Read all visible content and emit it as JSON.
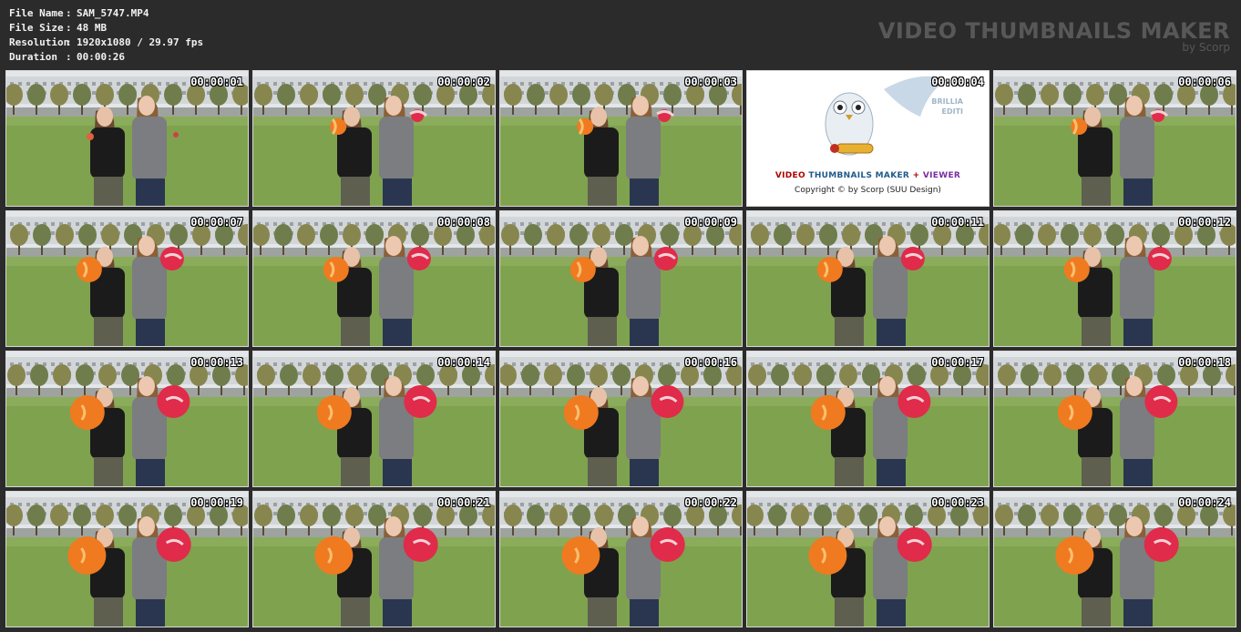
{
  "info": {
    "rows": [
      {
        "label": "File Name",
        "sep": ":",
        "value": "SAM_5747.MP4"
      },
      {
        "label": "File Size",
        "sep": ":",
        "value": "48 MB"
      },
      {
        "label": "Resolution",
        "sep": ":",
        "value": "1920x1080 / 29.97 fps"
      },
      {
        "label": "Duration",
        "sep": ":",
        "value": "00:00:26"
      }
    ]
  },
  "brand": {
    "title": "VIDEO THUMBNAILS MAKER",
    "subtitle": "by Scorp"
  },
  "logo": {
    "title_part1": "VIDEO",
    "title_part2": "THUMBNAILS MAKER",
    "title_part3": "+",
    "title_part4": "VIEWER",
    "copyright": "Copyright © by Scorp (SUU Design)",
    "side_line1": "BRILLIA",
    "side_line2": "EDITI"
  },
  "thumbnails": [
    {
      "time": "00:00:01",
      "kind": "frame",
      "stage": 0
    },
    {
      "time": "00:00:02",
      "kind": "frame",
      "stage": 1
    },
    {
      "time": "00:00:03",
      "kind": "frame",
      "stage": 1
    },
    {
      "time": "00:00:04",
      "kind": "logo",
      "stage": 0
    },
    {
      "time": "00:00:06",
      "kind": "frame",
      "stage": 1
    },
    {
      "time": "00:00:07",
      "kind": "frame",
      "stage": 2
    },
    {
      "time": "00:00:08",
      "kind": "frame",
      "stage": 2
    },
    {
      "time": "00:00:09",
      "kind": "frame",
      "stage": 2
    },
    {
      "time": "00:00:11",
      "kind": "frame",
      "stage": 2
    },
    {
      "time": "00:00:12",
      "kind": "frame",
      "stage": 2
    },
    {
      "time": "00:00:13",
      "kind": "frame",
      "stage": 3
    },
    {
      "time": "00:00:14",
      "kind": "frame",
      "stage": 3
    },
    {
      "time": "00:00:16",
      "kind": "frame",
      "stage": 3
    },
    {
      "time": "00:00:17",
      "kind": "frame",
      "stage": 3
    },
    {
      "time": "00:00:18",
      "kind": "frame",
      "stage": 3
    },
    {
      "time": "00:00:19",
      "kind": "frame",
      "stage": 4
    },
    {
      "time": "00:00:21",
      "kind": "frame",
      "stage": 4
    },
    {
      "time": "00:00:22",
      "kind": "frame",
      "stage": 4
    },
    {
      "time": "00:00:23",
      "kind": "frame",
      "stage": 4
    },
    {
      "time": "00:00:24",
      "kind": "frame",
      "stage": 4
    }
  ],
  "colors": {
    "background": "#2b2b2b",
    "grass": "#7fa24f",
    "sky": "#dfe4e8",
    "orange_balloon": "#f07a1f",
    "red_balloon": "#e02b4a"
  }
}
